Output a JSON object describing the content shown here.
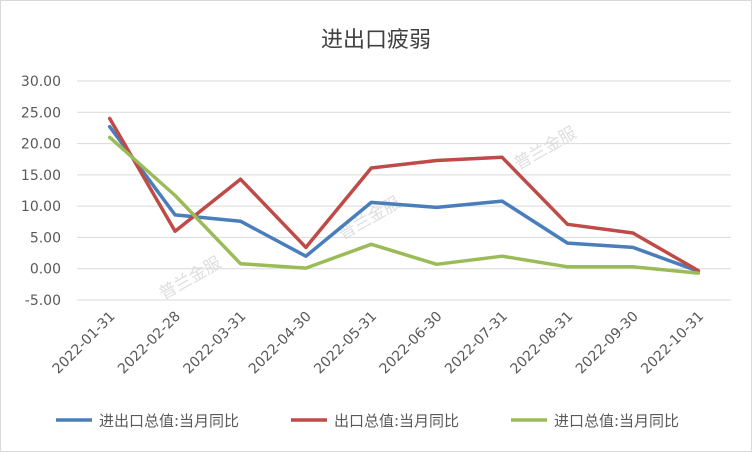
{
  "chart_data": {
    "type": "line",
    "title": "进出口疲弱",
    "xlabel": "",
    "ylabel": "",
    "categories": [
      "2022-01-31",
      "2022-02-28",
      "2022-03-31",
      "2022-04-30",
      "2022-05-31",
      "2022-06-30",
      "2022-07-31",
      "2022-08-31",
      "2022-09-30",
      "2022-10-31"
    ],
    "ylim": [
      -5,
      30
    ],
    "yticks": [
      "30.00",
      "25.00",
      "20.00",
      "15.00",
      "10.00",
      "5.00",
      "0.00",
      "-5.00"
    ],
    "grid": true,
    "legend": "bottom",
    "series": [
      {
        "name": "进出口总值:当月同比",
        "color": "#4a7ebb",
        "values": [
          22.7,
          8.6,
          7.6,
          2.0,
          10.6,
          9.8,
          10.8,
          4.1,
          3.4,
          -0.4
        ]
      },
      {
        "name": "出口总值:当月同比",
        "color": "#be4b48",
        "values": [
          24.0,
          6.0,
          14.3,
          3.4,
          16.1,
          17.3,
          17.8,
          7.1,
          5.7,
          -0.3
        ]
      },
      {
        "name": "进口总值:当月同比",
        "color": "#9bbb59",
        "values": [
          21.0,
          11.7,
          0.8,
          0.1,
          3.9,
          0.7,
          2.0,
          0.3,
          0.3,
          -0.7
        ]
      }
    ]
  },
  "watermark": "普兰金服"
}
